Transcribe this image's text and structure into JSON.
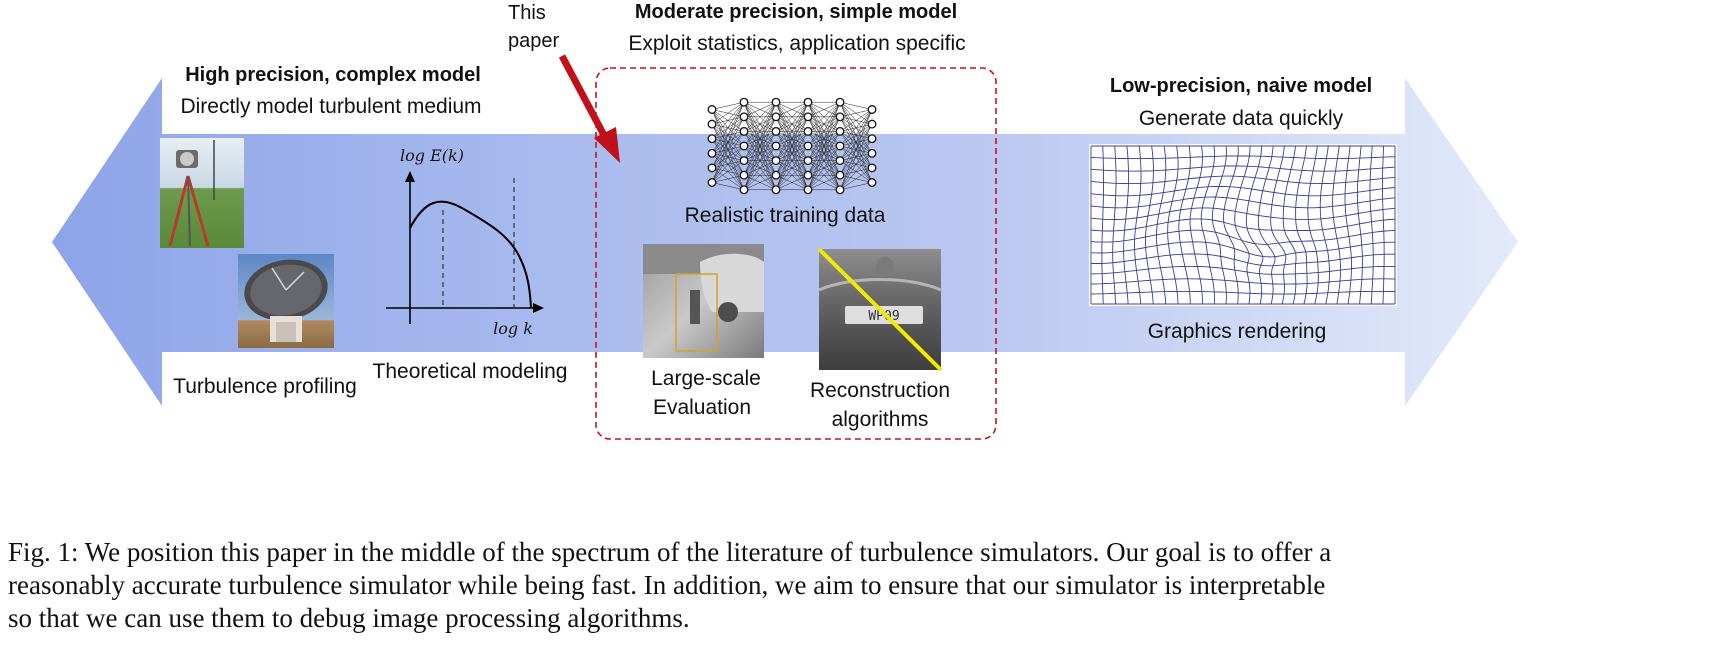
{
  "pointer": {
    "line1": "This",
    "line2": "paper"
  },
  "left": {
    "title": "High precision, complex model",
    "subtitle": "Directly model turbulent medium",
    "items": [
      {
        "label": "Turbulence profiling",
        "icon": "weather-station-and-radio-telescope-photos"
      },
      {
        "label": "Theoretical modeling",
        "icon": "energy-spectrum-plot"
      }
    ],
    "spectrum": {
      "ylabel": "log E(k)",
      "xlabel": "log k"
    }
  },
  "middle": {
    "title": "Moderate precision, simple model",
    "subtitle": "Exploit statistics, application specific",
    "items": [
      {
        "label": "Realistic training data",
        "icon": "neural-network-icon"
      },
      {
        "label_lines": [
          "Large-scale",
          "Evaluation"
        ],
        "icon": "surveillance-frame-photo"
      },
      {
        "label_lines": [
          "Reconstruction",
          "algorithms"
        ],
        "icon": "license-plate-photo"
      }
    ]
  },
  "right": {
    "title": "Low-precision, naive model",
    "subtitle": "Generate data quickly",
    "items": [
      {
        "label": "Graphics rendering",
        "icon": "warped-grid-icon"
      }
    ]
  },
  "caption": {
    "lines": [
      "Fig. 1: We position this paper in the middle of the spectrum of the literature of turbulence simulators. Our goal is to offer a",
      "reasonably accurate turbulence simulator while being fast. In addition, we aim to ensure that our simulator is interpretable",
      "so that we can use them to debug image processing algorithms."
    ]
  },
  "colors": {
    "arrow_dark": "#8aa1e6",
    "arrow_light": "#e3e9fa",
    "highlight_box": "#c0141d",
    "pointer_arrow": "#c0101a",
    "license_line": "#f2ea00"
  }
}
